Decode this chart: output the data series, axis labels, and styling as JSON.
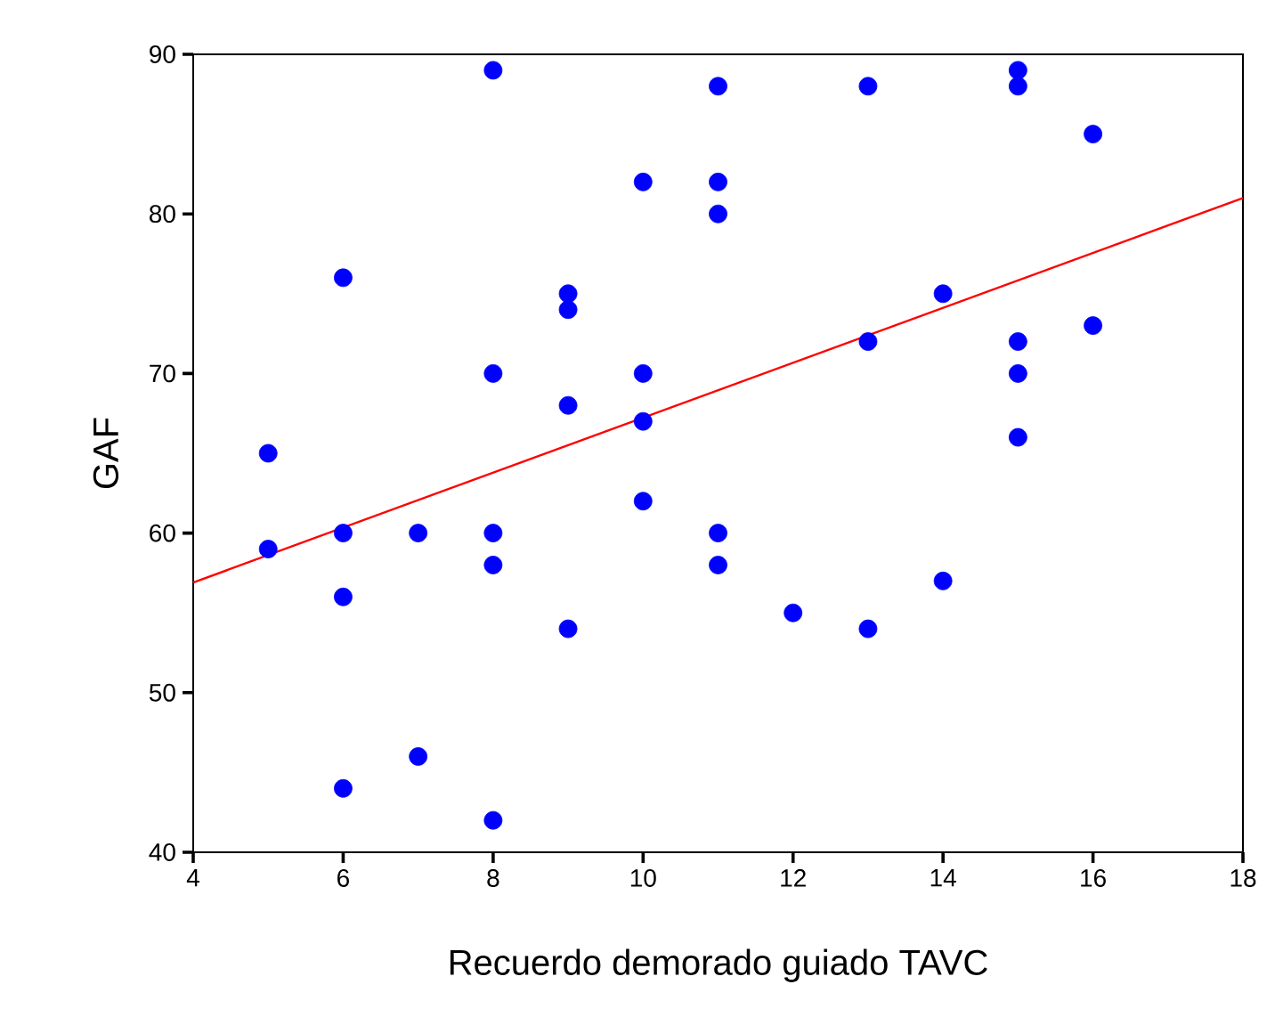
{
  "chart_data": {
    "type": "scatter",
    "xlabel": "Recuerdo demorado guiado TAVC",
    "ylabel": "GAF",
    "xlim": [
      4,
      18
    ],
    "ylim": [
      40,
      90
    ],
    "xticks": [
      4,
      6,
      8,
      10,
      12,
      14,
      16,
      18
    ],
    "yticks": [
      40,
      50,
      60,
      70,
      80,
      90
    ],
    "marker": "circle",
    "series": [
      {
        "color": "#0000ff",
        "x": [
          5,
          5,
          6,
          6,
          6,
          6,
          7,
          7,
          8,
          8,
          8,
          8,
          8,
          9,
          9,
          9,
          9,
          10,
          10,
          10,
          10,
          11,
          11,
          11,
          11,
          11,
          12,
          13,
          13,
          13,
          14,
          14,
          15,
          15,
          15,
          15,
          15,
          16,
          16
        ],
        "values": [
          65,
          59,
          76,
          60,
          56,
          44,
          60,
          46,
          89,
          70,
          60,
          58,
          42,
          75,
          74,
          68,
          54,
          82,
          70,
          67,
          62,
          88,
          82,
          80,
          60,
          58,
          55,
          88,
          72,
          54,
          75,
          57,
          89,
          88,
          72,
          70,
          66,
          85,
          73
        ]
      },
      {
        "type": "line",
        "color": "#ff0000",
        "marker": "none",
        "line_style": "solid",
        "x": [
          4,
          18
        ],
        "values": [
          56.9,
          81.0
        ]
      }
    ]
  }
}
